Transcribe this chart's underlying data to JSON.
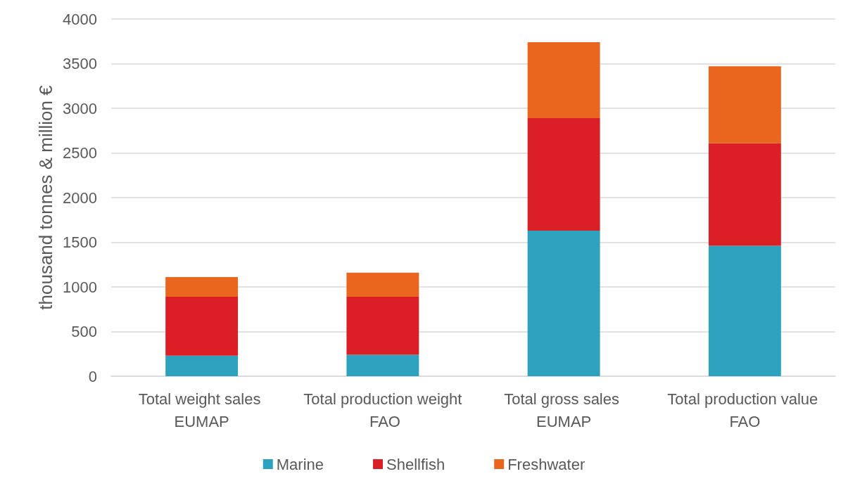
{
  "chart_data": {
    "type": "bar",
    "stacked": true,
    "ylabel": "thousand tonnes & million €",
    "categories": [
      "Total weight sales EUMAP",
      "Total production weight FAO",
      "Total gross sales EUMAP",
      "Total production value FAO"
    ],
    "series": [
      {
        "name": "Marine",
        "color": "#2ca2bf",
        "values": [
          230,
          240,
          1630,
          1460
        ]
      },
      {
        "name": "Shellfish",
        "color": "#da1f26",
        "values": [
          660,
          650,
          1260,
          1150
        ]
      },
      {
        "name": "Freshwater",
        "color": "#ea661e",
        "values": [
          220,
          270,
          850,
          860
        ]
      }
    ],
    "ylim": [
      0,
      4000
    ],
    "yticks": [
      0,
      500,
      1000,
      1500,
      2000,
      2500,
      3000,
      3500,
      4000
    ],
    "grid": "y",
    "legend": "bottom"
  }
}
